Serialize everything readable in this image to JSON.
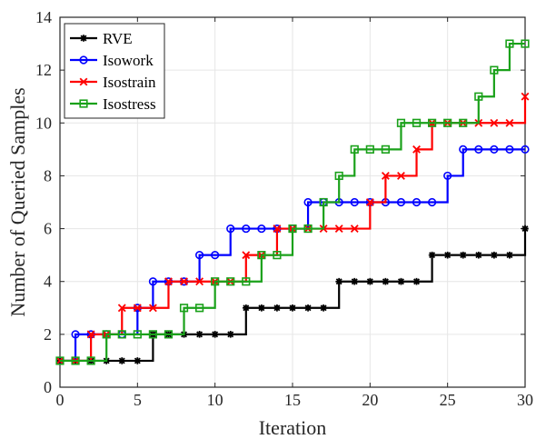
{
  "chart_data": {
    "type": "line",
    "step": true,
    "title": "",
    "xlabel": "Iteration",
    "ylabel": "Number of Queried Samples",
    "xlim": [
      0,
      30
    ],
    "ylim": [
      0,
      14
    ],
    "xticks": [
      0,
      5,
      10,
      15,
      20,
      25,
      30
    ],
    "yticks": [
      0,
      2,
      4,
      6,
      8,
      10,
      12,
      14
    ],
    "grid": true,
    "legend_position": "top-left",
    "series": [
      {
        "name": "RVE",
        "color": "#000000",
        "marker": "asterisk",
        "x": [
          0,
          1,
          2,
          3,
          4,
          5,
          6,
          7,
          8,
          9,
          10,
          11,
          12,
          13,
          14,
          15,
          16,
          17,
          18,
          19,
          20,
          21,
          22,
          23,
          24,
          25,
          26,
          27,
          28,
          29,
          30
        ],
        "y": [
          1,
          1,
          1,
          1,
          1,
          1,
          2,
          2,
          2,
          2,
          2,
          2,
          3,
          3,
          3,
          3,
          3,
          3,
          4,
          4,
          4,
          4,
          4,
          4,
          5,
          5,
          5,
          5,
          5,
          5,
          6
        ]
      },
      {
        "name": "Isowork",
        "color": "#0000ff",
        "marker": "circle",
        "x": [
          0,
          1,
          2,
          3,
          4,
          5,
          6,
          7,
          8,
          9,
          10,
          11,
          12,
          13,
          14,
          15,
          16,
          17,
          18,
          19,
          20,
          21,
          22,
          23,
          24,
          25,
          26,
          27,
          28,
          29,
          30
        ],
        "y": [
          1,
          2,
          2,
          2,
          2,
          3,
          4,
          4,
          4,
          5,
          5,
          6,
          6,
          6,
          6,
          6,
          7,
          7,
          7,
          7,
          7,
          7,
          7,
          7,
          7,
          8,
          9,
          9,
          9,
          9,
          9
        ]
      },
      {
        "name": "Isostrain",
        "color": "#ff0000",
        "marker": "x",
        "x": [
          0,
          1,
          2,
          3,
          4,
          5,
          6,
          7,
          8,
          9,
          10,
          11,
          12,
          13,
          14,
          15,
          16,
          17,
          18,
          19,
          20,
          21,
          22,
          23,
          24,
          25,
          26,
          27,
          28,
          29,
          30
        ],
        "y": [
          1,
          1,
          2,
          2,
          3,
          3,
          3,
          4,
          4,
          4,
          4,
          4,
          5,
          5,
          6,
          6,
          6,
          6,
          6,
          6,
          7,
          8,
          8,
          9,
          10,
          10,
          10,
          10,
          10,
          10,
          11
        ]
      },
      {
        "name": "Isostress",
        "color": "#1aa11a",
        "marker": "square",
        "x": [
          0,
          1,
          2,
          3,
          4,
          5,
          6,
          7,
          8,
          9,
          10,
          11,
          12,
          13,
          14,
          15,
          16,
          17,
          18,
          19,
          20,
          21,
          22,
          23,
          24,
          25,
          26,
          27,
          28,
          29,
          30
        ],
        "y": [
          1,
          1,
          1,
          2,
          2,
          2,
          2,
          2,
          3,
          3,
          4,
          4,
          4,
          5,
          5,
          6,
          6,
          7,
          8,
          9,
          9,
          9,
          10,
          10,
          10,
          10,
          10,
          11,
          12,
          13,
          13
        ]
      }
    ]
  }
}
